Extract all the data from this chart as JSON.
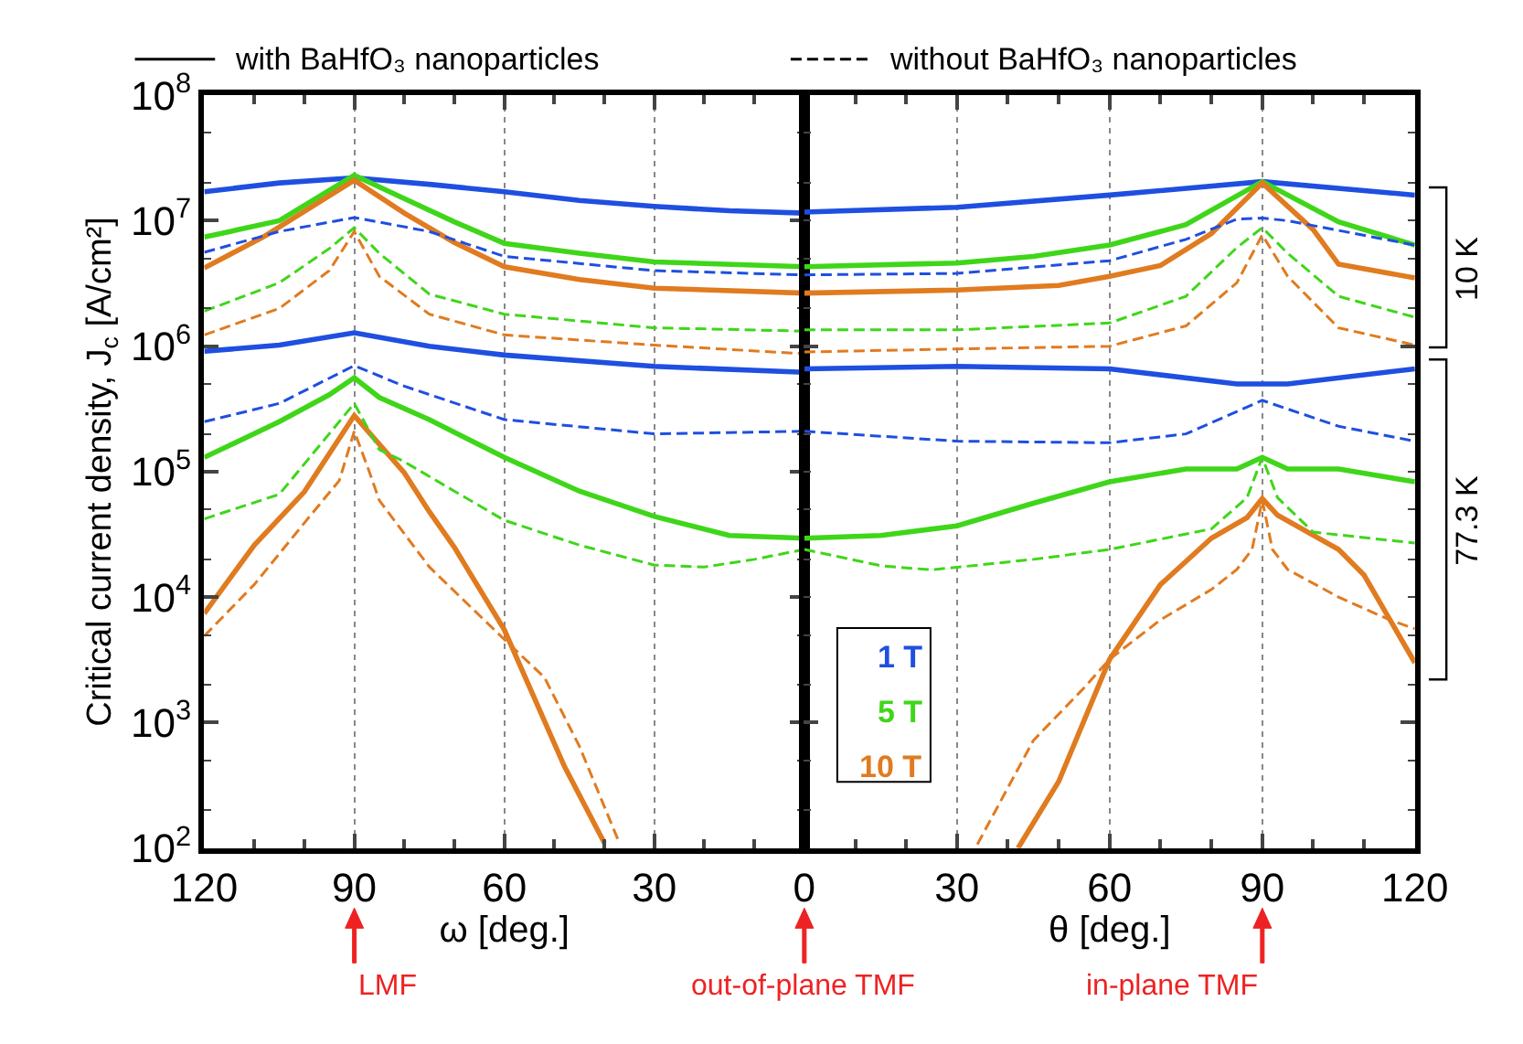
{
  "chart_data": [
    {
      "type": "line",
      "xlabel": "ω [deg.]",
      "ylabel": "Critical current density, J$_{c}$ [A/cm²]",
      "log": true,
      "grid": "x",
      "tick_labels": "xy",
      "xlim": [
        120,
        0
      ],
      "xticks": [
        120,
        90,
        60,
        30
      ],
      "ylim": [
        100,
        100000000
      ],
      "yticks": [
        {
          "value": 100,
          "label": "10$^{2}$"
        },
        {
          "value": 1000,
          "label": "10$^{3}$"
        },
        {
          "value": 10000,
          "label": "10$^{4}$"
        },
        {
          "value": 100000,
          "label": "10$^{5}$"
        },
        {
          "value": 1000000,
          "label": "10$^{6}$"
        },
        {
          "value": 10000000,
          "label": "10$^{7}$"
        },
        {
          "value": 100000000,
          "label": "10$^{8}$"
        }
      ],
      "annotations": [
        "with BaHfO₃ nanoparticles",
        "without BaHfO₃ nanoparticles",
        "1 T",
        "5 T",
        "10 T",
        "10 K",
        "77.3 K",
        "LMF"
      ],
      "series": [
        {
          "color": "#1f4fe0",
          "line_style": "solid",
          "x": [
            120,
            105,
            90,
            75,
            60,
            45,
            30,
            15,
            0
          ],
          "values": [
            17000000,
            20000000,
            22000000,
            19500000,
            17000000,
            14500000,
            13000000,
            12000000,
            11500000
          ]
        },
        {
          "color": "#3fd61a",
          "line_style": "solid",
          "x": [
            120,
            105,
            90,
            80,
            70,
            60,
            45,
            30,
            0
          ],
          "values": [
            7400000,
            10000000,
            23000000,
            15000000,
            9800000,
            6600000,
            5500000,
            4700000,
            4300000
          ]
        },
        {
          "color": "#e07b20",
          "line_style": "solid",
          "x": [
            120,
            108,
            90,
            80,
            70,
            60,
            45,
            30,
            0
          ],
          "values": [
            4200000,
            7500000,
            21000000,
            11500000,
            6700000,
            4300000,
            3400000,
            2900000,
            2650000
          ]
        },
        {
          "color": "#1f4fe0",
          "line_style": "dashed",
          "x": [
            120,
            105,
            90,
            75,
            60,
            30,
            0
          ],
          "values": [
            5600000,
            8200000,
            10600000,
            8200000,
            5200000,
            4000000,
            3700000
          ]
        },
        {
          "color": "#3fd61a",
          "line_style": "dashed",
          "x": [
            120,
            105,
            95,
            90,
            85,
            75,
            60,
            30,
            0
          ],
          "values": [
            1900000,
            3200000,
            6000000,
            8800000,
            5500000,
            2600000,
            1800000,
            1400000,
            1320000
          ]
        },
        {
          "color": "#e07b20",
          "line_style": "dashed",
          "x": [
            120,
            105,
            95,
            90,
            85,
            75,
            60,
            30,
            0
          ],
          "values": [
            1230000,
            2000000,
            4000000,
            8200000,
            3600000,
            1800000,
            1230000,
            1020000,
            870000
          ]
        },
        {
          "color": "#1f4fe0",
          "line_style": "solid",
          "x": [
            120,
            105,
            90,
            75,
            60,
            30,
            0
          ],
          "values": [
            910000,
            1020000,
            1280000,
            1000000,
            850000,
            690000,
            620000
          ]
        },
        {
          "color": "#3fd61a",
          "line_style": "solid",
          "x": [
            120,
            105,
            95,
            90,
            85,
            75,
            60,
            45,
            30,
            15,
            0
          ],
          "values": [
            130000,
            250000,
            410000,
            560000,
            390000,
            260000,
            130000,
            70000,
            44000,
            31000,
            29500
          ]
        },
        {
          "color": "#e07b20",
          "line_style": "solid",
          "x": [
            120,
            110,
            100,
            90,
            80,
            75,
            70,
            60,
            48,
            40
          ],
          "values": [
            7400,
            26000,
            69000,
            280000,
            98000,
            48000,
            25000,
            5500,
            450,
            110
          ]
        },
        {
          "color": "#1f4fe0",
          "line_style": "dashed",
          "x": [
            120,
            105,
            90,
            80,
            60,
            30,
            0
          ],
          "values": [
            250000,
            350000,
            700000,
            480000,
            260000,
            200000,
            210000
          ]
        },
        {
          "color": "#3fd61a",
          "line_style": "dashed",
          "x": [
            120,
            105,
            90,
            85,
            80,
            70,
            60,
            45,
            30,
            20,
            10,
            0
          ],
          "values": [
            42000,
            66000,
            350000,
            150000,
            120000,
            70000,
            41000,
            26000,
            18000,
            17400,
            20000,
            24000
          ]
        },
        {
          "color": "#e07b20",
          "line_style": "dashed",
          "x": [
            120,
            110,
            100,
            93,
            90,
            87,
            85,
            75,
            60,
            52,
            45,
            37
          ],
          "values": [
            4900,
            12600,
            39000,
            85000,
            210000,
            100000,
            59000,
            17400,
            4600,
            2300,
            650,
            110
          ]
        }
      ]
    },
    {
      "type": "line",
      "xlabel": "θ [deg.]",
      "log": true,
      "grid": "x",
      "tick_labels": "x",
      "xlim": [
        0,
        120
      ],
      "xticks": [
        0,
        30,
        60,
        90,
        120
      ],
      "ylim": [
        100,
        100000000
      ],
      "yticks": [
        {
          "value": 100,
          "label": null
        },
        {
          "value": 1000,
          "label": null
        },
        {
          "value": 10000,
          "label": null
        },
        {
          "value": 100000,
          "label": null
        },
        {
          "value": 1000000,
          "label": null
        },
        {
          "value": 10000000,
          "label": null
        },
        {
          "value": 100000000,
          "label": null
        }
      ],
      "annotations": [
        "out-of-plane TMF",
        "in-plane TMF"
      ],
      "series": [
        {
          "color": "#1f4fe0",
          "line_style": "solid",
          "x": [
            0,
            30,
            60,
            90,
            120
          ],
          "values": [
            11700000,
            12800000,
            16000000,
            20500000,
            16000000
          ]
        },
        {
          "color": "#3fd61a",
          "line_style": "solid",
          "x": [
            0,
            30,
            45,
            60,
            75,
            90,
            105,
            120
          ],
          "values": [
            4300000,
            4600000,
            5200000,
            6400000,
            9300000,
            20500000,
            9800000,
            6400000
          ]
        },
        {
          "color": "#e07b20",
          "line_style": "solid",
          "x": [
            0,
            30,
            50,
            60,
            70,
            80,
            90,
            100,
            105,
            120
          ],
          "values": [
            2650000,
            2800000,
            3050000,
            3600000,
            4400000,
            7900000,
            20000000,
            8500000,
            4500000,
            3500000
          ]
        },
        {
          "color": "#1f4fe0",
          "line_style": "dashed",
          "x": [
            0,
            30,
            60,
            75,
            85,
            90,
            95,
            120
          ],
          "values": [
            3700000,
            3800000,
            4800000,
            7100000,
            10300000,
            10500000,
            10000000,
            6400000
          ]
        },
        {
          "color": "#3fd61a",
          "line_style": "dashed",
          "x": [
            0,
            30,
            60,
            75,
            85,
            90,
            95,
            105,
            120
          ],
          "values": [
            1350000,
            1350000,
            1530000,
            2500000,
            6100000,
            8800000,
            5500000,
            2500000,
            1700000
          ]
        },
        {
          "color": "#e07b20",
          "line_style": "dashed",
          "x": [
            0,
            30,
            60,
            75,
            85,
            90,
            95,
            105,
            120
          ],
          "values": [
            900000,
            950000,
            1000000,
            1450000,
            3200000,
            7700000,
            3600000,
            1400000,
            1020000
          ]
        },
        {
          "color": "#1f4fe0",
          "line_style": "solid",
          "x": [
            0,
            30,
            60,
            85,
            95,
            120
          ],
          "values": [
            660000,
            690000,
            660000,
            500000,
            500000,
            660000
          ]
        },
        {
          "color": "#3fd61a",
          "line_style": "solid",
          "x": [
            0,
            15,
            30,
            45,
            60,
            75,
            85,
            90,
            95,
            105,
            120
          ],
          "values": [
            29500,
            31000,
            37000,
            56000,
            83000,
            105000,
            105000,
            130000,
            105000,
            105000,
            83000
          ]
        },
        {
          "color": "#e07b20",
          "line_style": "solid",
          "x": [
            42,
            50,
            60,
            70,
            80,
            87,
            90,
            93,
            105,
            110,
            120
          ],
          "values": [
            100,
            340,
            3200,
            12600,
            29500,
            43000,
            61000,
            45000,
            24000,
            15000,
            3000
          ]
        },
        {
          "color": "#1f4fe0",
          "line_style": "dashed",
          "x": [
            0,
            30,
            60,
            75,
            90,
            105,
            120
          ],
          "values": [
            210000,
            175000,
            170000,
            200000,
            370000,
            230000,
            175000
          ]
        },
        {
          "color": "#3fd61a",
          "line_style": "dashed",
          "x": [
            0,
            15,
            25,
            45,
            60,
            80,
            87,
            90,
            93,
            100,
            120
          ],
          "values": [
            24000,
            17800,
            16500,
            20000,
            24000,
            35000,
            62000,
            130000,
            62000,
            33000,
            27000
          ]
        },
        {
          "color": "#e07b20",
          "line_style": "dashed",
          "x": [
            34,
            45,
            55,
            60,
            70,
            80,
            85,
            88,
            90,
            92,
            95,
            105,
            115,
            120
          ],
          "values": [
            107,
            720,
            1900,
            3200,
            6600,
            11500,
            16600,
            24000,
            59000,
            24000,
            16600,
            10000,
            6600,
            5600
          ]
        }
      ]
    }
  ]
}
